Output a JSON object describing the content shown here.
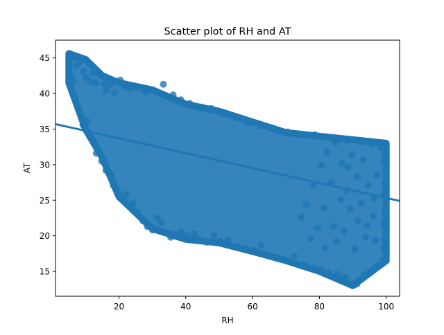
{
  "chart_data": {
    "type": "scatter",
    "title": "Scatter plot of RH and AT",
    "xlabel": "RH",
    "ylabel": "AT",
    "xlim": [
      1,
      104
    ],
    "ylim": [
      11.5,
      47.5
    ],
    "x_ticks": [
      20,
      40,
      60,
      80,
      100
    ],
    "y_ticks": [
      15,
      20,
      25,
      30,
      35,
      40,
      45
    ],
    "grid": false,
    "color": "#1f77b4",
    "regression_line": {
      "x": [
        1,
        104
      ],
      "y": [
        35.7,
        24.9
      ]
    },
    "point_bands": {
      "description_free_envelope": true,
      "upper": [
        [
          5,
          45.6
        ],
        [
          10,
          44.8
        ],
        [
          15,
          42.5
        ],
        [
          20,
          41.5
        ],
        [
          30,
          40.5
        ],
        [
          40,
          38.5
        ],
        [
          50,
          37.5
        ],
        [
          60,
          36
        ],
        [
          70,
          34.5
        ],
        [
          80,
          34
        ],
        [
          90,
          33.5
        ],
        [
          100,
          33
        ]
      ],
      "lower": [
        [
          5,
          41.5
        ],
        [
          10,
          35
        ],
        [
          15,
          31
        ],
        [
          20,
          25.5
        ],
        [
          30,
          21
        ],
        [
          40,
          19.5
        ],
        [
          50,
          19
        ],
        [
          60,
          17.8
        ],
        [
          70,
          16.5
        ],
        [
          80,
          15
        ],
        [
          90,
          13
        ],
        [
          100,
          16.5
        ]
      ]
    },
    "points": [
      [
        5.2,
        45.6
      ],
      [
        5.5,
        44.9
      ],
      [
        6.3,
        45.1
      ],
      [
        7.1,
        45.2
      ],
      [
        5.8,
        42.4
      ],
      [
        6.4,
        41.8
      ],
      [
        7.2,
        43.9
      ],
      [
        8.1,
        44.4
      ],
      [
        9.3,
        43.1
      ],
      [
        10.2,
        42.2
      ],
      [
        11.4,
        41.7
      ],
      [
        12.3,
        42.9
      ],
      [
        13.1,
        41.5
      ],
      [
        14.2,
        42.7
      ],
      [
        15.5,
        41.3
      ],
      [
        16.2,
        40.4
      ],
      [
        17.3,
        41.2
      ],
      [
        18.6,
        40.1
      ],
      [
        20.4,
        41.9
      ],
      [
        21.5,
        41.1
      ],
      [
        23.2,
        40.7
      ],
      [
        25.5,
        40.8
      ],
      [
        27.8,
        40.2
      ],
      [
        30.1,
        40.5
      ],
      [
        33.3,
        41.3
      ],
      [
        36.2,
        39.8
      ],
      [
        38.5,
        39.1
      ],
      [
        41.2,
        38.6
      ],
      [
        44.8,
        38.1
      ],
      [
        47.6,
        37.9
      ],
      [
        51.3,
        37.1
      ],
      [
        55.1,
        36.6
      ],
      [
        58.4,
        35.9
      ],
      [
        62.3,
        35.5
      ],
      [
        66.1,
        35.1
      ],
      [
        70.5,
        34.6
      ],
      [
        74.2,
        34.3
      ],
      [
        78.6,
        34.2
      ],
      [
        82.1,
        33.9
      ],
      [
        85.3,
        33.6
      ],
      [
        88.4,
        33.4
      ],
      [
        92.3,
        33.2
      ],
      [
        95.5,
        32.9
      ],
      [
        98.8,
        32.8
      ],
      [
        9.2,
        35.6
      ],
      [
        10.5,
        36.1
      ],
      [
        12.1,
        33.4
      ],
      [
        13.2,
        31.6
      ],
      [
        14.8,
        30.5
      ],
      [
        16.1,
        29.2
      ],
      [
        17.6,
        28.6
      ],
      [
        18.3,
        27.1
      ],
      [
        19.4,
        26.5
      ],
      [
        20.2,
        25.4
      ],
      [
        22.1,
        25.8
      ],
      [
        24.3,
        24.6
      ],
      [
        25.6,
        23.3
      ],
      [
        27.2,
        22.1
      ],
      [
        28.5,
        21.3
      ],
      [
        30.1,
        20.8
      ],
      [
        31.4,
        22.5
      ],
      [
        32.6,
        21.9
      ],
      [
        34.2,
        20.4
      ],
      [
        35.5,
        19.8
      ],
      [
        37.1,
        20.2
      ],
      [
        38.7,
        20.6
      ],
      [
        40.2,
        19.9
      ],
      [
        42.6,
        20.3
      ],
      [
        44.1,
        19.5
      ],
      [
        46.2,
        19.1
      ],
      [
        48.5,
        20.1
      ],
      [
        50.3,
        19.2
      ],
      [
        52.6,
        19.4
      ],
      [
        55.1,
        18.5
      ],
      [
        57.8,
        18.2
      ],
      [
        60.4,
        17.9
      ],
      [
        62.5,
        18.6
      ],
      [
        65.2,
        17.2
      ],
      [
        67.6,
        16.8
      ],
      [
        70.3,
        16.5
      ],
      [
        72.5,
        17.1
      ],
      [
        75.3,
        15.9
      ],
      [
        78.1,
        15.5
      ],
      [
        80.5,
        15.2
      ],
      [
        82.7,
        14.8
      ],
      [
        85.4,
        14.6
      ],
      [
        87.6,
        14.2
      ],
      [
        89.1,
        13.3
      ],
      [
        90.3,
        13.1
      ],
      [
        91.2,
        13.2
      ],
      [
        93.5,
        14.5
      ],
      [
        95.6,
        15.1
      ],
      [
        97.2,
        15.8
      ],
      [
        98.9,
        16.6
      ],
      [
        99.3,
        18.2
      ],
      [
        99.5,
        19.5
      ],
      [
        99.2,
        21.6
      ],
      [
        99.6,
        23.4
      ],
      [
        99.4,
        25.8
      ],
      [
        99.5,
        27.3
      ],
      [
        99.7,
        29.2
      ],
      [
        99.1,
        30.6
      ],
      [
        99.6,
        31.5
      ],
      [
        98.5,
        32.4
      ],
      [
        89.2,
        23.8
      ],
      [
        86.4,
        25.1
      ],
      [
        88.1,
        26.4
      ],
      [
        92.5,
        24.6
      ],
      [
        91.6,
        22.1
      ],
      [
        94.2,
        21.4
      ],
      [
        96.1,
        22.8
      ],
      [
        87.3,
        20.6
      ],
      [
        85.1,
        19.2
      ],
      [
        90.6,
        18.1
      ],
      [
        93.8,
        19.8
      ],
      [
        96.8,
        19.4
      ],
      [
        84.3,
        21.3
      ],
      [
        81.2,
        23.9
      ],
      [
        83.5,
        27.5
      ],
      [
        88.5,
        29.6
      ],
      [
        91.3,
        28.3
      ],
      [
        94.6,
        27.1
      ],
      [
        97.3,
        28.6
      ],
      [
        96.4,
        25.3
      ],
      [
        93.1,
        30.7
      ],
      [
        89.6,
        31.4
      ],
      [
        86.7,
        30.2
      ],
      [
        82.4,
        31.8
      ],
      [
        84.8,
        33.1
      ],
      [
        80.6,
        29.9
      ],
      [
        78.3,
        27.2
      ],
      [
        76.1,
        24.4
      ],
      [
        79.5,
        21.1
      ],
      [
        81.8,
        18.3
      ],
      [
        77.4,
        19.6
      ],
      [
        74.6,
        22.6
      ]
    ]
  }
}
